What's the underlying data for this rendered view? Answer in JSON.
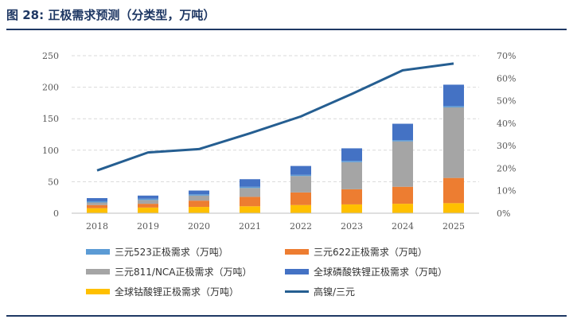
{
  "figure": {
    "title": "图 28:  正极需求预测（分类型，万吨）"
  },
  "colors": {
    "ncm523": "#5b9bd5",
    "ncm622": "#ed7d31",
    "ncm811_nca": "#a5a5a5",
    "lfp": "#4472c4",
    "lco": "#ffc000",
    "ratio": "#255e91",
    "title": "#1f3864"
  },
  "chart_data": {
    "type": "bar",
    "stacked": true,
    "categories": [
      "2018",
      "2019",
      "2020",
      "2021",
      "2022",
      "2023",
      "2024",
      "2025"
    ],
    "series": [
      {
        "name": "全球钴酸锂正极需求（万吨）",
        "key": "lco",
        "values": [
          8,
          9,
          10,
          11,
          13,
          14,
          15,
          16
        ]
      },
      {
        "name": "三元622正极需求（万吨）",
        "key": "ncm622",
        "values": [
          5,
          6,
          10,
          15,
          20,
          24,
          27,
          40
        ]
      },
      {
        "name": "三元811/NCA正极需求（万吨）",
        "key": "ncm811_nca",
        "values": [
          4,
          6,
          8,
          14,
          26,
          43,
          72,
          112
        ]
      },
      {
        "name": "三元523正极需求（万吨）",
        "key": "ncm523",
        "values": [
          2,
          2,
          2,
          2,
          2,
          2,
          2,
          2
        ]
      },
      {
        "name": "全球磷酸铁锂正极需求（万吨）",
        "key": "lfp",
        "values": [
          5,
          5,
          6,
          12,
          14,
          20,
          26,
          34
        ]
      },
      {
        "name": "高镍/三元",
        "key": "ratio",
        "type": "line",
        "axis": "right",
        "values": [
          0.19,
          0.27,
          0.285,
          0.355,
          0.43,
          0.53,
          0.635,
          0.665
        ]
      }
    ],
    "y_left": {
      "min": 0,
      "max": 250,
      "ticks": [
        "0",
        "50",
        "100",
        "150",
        "200",
        "250"
      ]
    },
    "y_right": {
      "min": 0,
      "max": 0.7,
      "ticks": [
        "0%",
        "10%",
        "20%",
        "30%",
        "40%",
        "50%",
        "60%",
        "70%"
      ]
    },
    "grid": "horizontal dashed",
    "legend": {
      "position": "bottom",
      "items": [
        {
          "label": "三元523正极需求（万吨）",
          "key": "ncm523",
          "kind": "bar"
        },
        {
          "label": "三元622正极需求（万吨）",
          "key": "ncm622",
          "kind": "bar"
        },
        {
          "label": "三元811/NCA正极需求（万吨）",
          "key": "ncm811_nca",
          "kind": "bar"
        },
        {
          "label": "全球磷酸铁锂正极需求（万吨）",
          "key": "lfp",
          "kind": "bar"
        },
        {
          "label": "全球钴酸锂正极需求（万吨）",
          "key": "lco",
          "kind": "bar"
        },
        {
          "label": "高镍/三元",
          "key": "ratio",
          "kind": "line"
        }
      ]
    }
  }
}
